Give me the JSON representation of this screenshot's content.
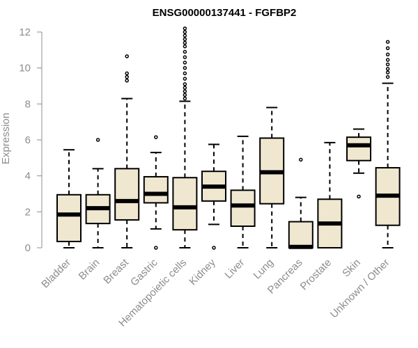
{
  "chart_data": {
    "type": "boxplot",
    "title": "ENSG00000137441 - FGFBP2",
    "ylabel": "Expression",
    "xlabel": "",
    "ylim": [
      0,
      12
    ],
    "yticks": [
      0,
      2,
      4,
      6,
      8,
      10,
      12
    ],
    "grid": false,
    "box_color": "#efe7d0",
    "categories": [
      "Bladder",
      "Brain",
      "Breast",
      "Gastric",
      "Hematopoietic cells",
      "Kidney",
      "Liver",
      "Lung",
      "Pancreas",
      "Prostate",
      "Skin",
      "Unknown / Other"
    ],
    "boxes": [
      {
        "q1": 0.35,
        "median": 1.85,
        "q3": 2.95,
        "low": 0.0,
        "high": 5.45,
        "outliers": []
      },
      {
        "q1": 1.35,
        "median": 2.2,
        "q3": 2.95,
        "low": 0.0,
        "high": 4.4,
        "outliers": [
          6.0
        ]
      },
      {
        "q1": 1.55,
        "median": 2.6,
        "q3": 4.4,
        "low": 0.0,
        "high": 8.3,
        "outliers": [
          9.3,
          9.5,
          9.7,
          10.65
        ]
      },
      {
        "q1": 2.5,
        "median": 3.0,
        "q3": 3.95,
        "low": 1.05,
        "high": 5.3,
        "outliers": [
          0.0,
          6.15
        ]
      },
      {
        "q1": 1.0,
        "median": 2.25,
        "q3": 3.9,
        "low": 0.0,
        "high": 8.15,
        "outliers": [
          8.3,
          8.5,
          8.7,
          8.9,
          9.1,
          9.4,
          9.7,
          10.0,
          10.3,
          10.6,
          10.9,
          11.2,
          11.4,
          11.6,
          11.8,
          12.0,
          12.2
        ]
      },
      {
        "q1": 2.6,
        "median": 3.4,
        "q3": 4.25,
        "low": 1.3,
        "high": 5.75,
        "outliers": [
          0.0
        ]
      },
      {
        "q1": 1.2,
        "median": 2.35,
        "q3": 3.2,
        "low": 0.0,
        "high": 6.2,
        "outliers": []
      },
      {
        "q1": 2.45,
        "median": 4.2,
        "q3": 6.1,
        "low": 0.0,
        "high": 7.8,
        "outliers": []
      },
      {
        "q1": 0.0,
        "median": 0.05,
        "q3": 1.45,
        "low": 0.0,
        "high": 2.8,
        "outliers": [
          4.9
        ]
      },
      {
        "q1": 0.0,
        "median": 1.35,
        "q3": 2.7,
        "low": 0.0,
        "high": 5.85,
        "outliers": []
      },
      {
        "q1": 4.85,
        "median": 5.7,
        "q3": 6.15,
        "low": 4.15,
        "high": 6.6,
        "outliers": [
          2.85
        ]
      },
      {
        "q1": 1.25,
        "median": 2.9,
        "q3": 4.45,
        "low": 0.0,
        "high": 9.15,
        "outliers": [
          9.5,
          9.75,
          9.95,
          10.2,
          10.45,
          10.75,
          11.1,
          11.45
        ]
      }
    ]
  }
}
